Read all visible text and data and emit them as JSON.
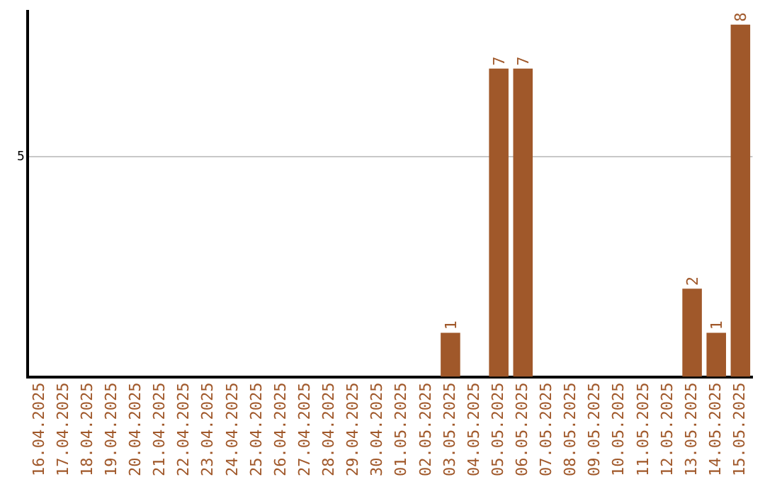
{
  "chart_data": {
    "type": "bar",
    "categories": [
      "16.04.2025",
      "17.04.2025",
      "18.04.2025",
      "19.04.2025",
      "20.04.2025",
      "21.04.2025",
      "22.04.2025",
      "23.04.2025",
      "24.04.2025",
      "25.04.2025",
      "26.04.2025",
      "27.04.2025",
      "28.04.2025",
      "29.04.2025",
      "30.04.2025",
      "01.05.2025",
      "02.05.2025",
      "03.05.2025",
      "04.05.2025",
      "05.05.2025",
      "06.05.2025",
      "07.05.2025",
      "08.05.2025",
      "09.05.2025",
      "10.05.2025",
      "11.05.2025",
      "12.05.2025",
      "13.05.2025",
      "14.05.2025",
      "15.05.2025"
    ],
    "values": [
      null,
      null,
      null,
      null,
      null,
      null,
      null,
      null,
      null,
      null,
      null,
      null,
      null,
      null,
      null,
      null,
      null,
      1,
      null,
      7,
      7,
      null,
      null,
      null,
      null,
      null,
      null,
      2,
      1,
      8
    ],
    "data_labels": true,
    "color": "#a0582a",
    "ylim": [
      0,
      8.3
    ],
    "yticks": [
      5
    ],
    "grid": "y",
    "legend": false
  }
}
